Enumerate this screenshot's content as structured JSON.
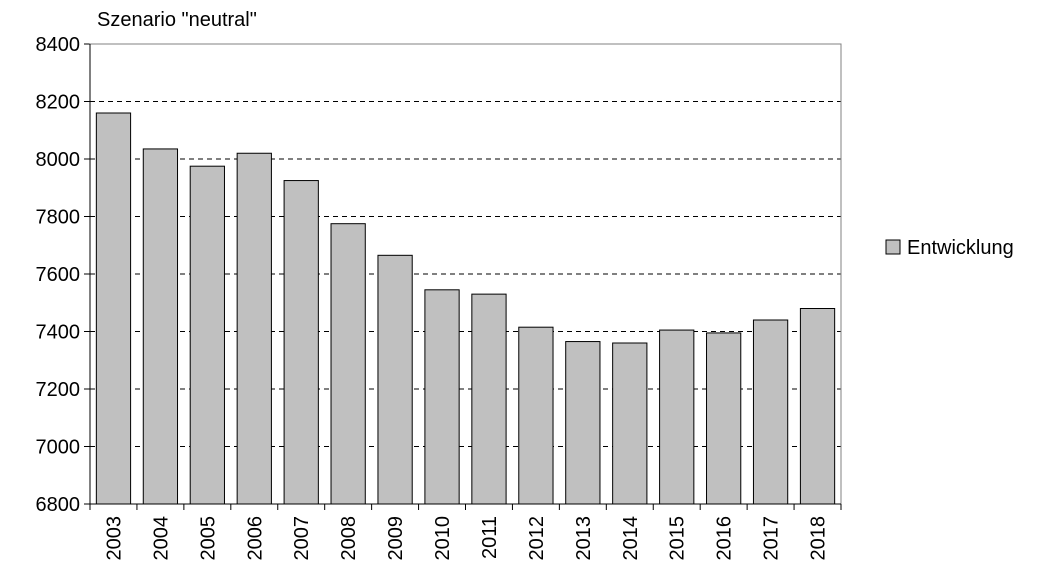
{
  "chart_data": {
    "type": "bar",
    "title": "Szenario \"neutral\"",
    "xlabel": "",
    "ylabel": "",
    "categories": [
      "2003",
      "2004",
      "2005",
      "2006",
      "2007",
      "2008",
      "2009",
      "2010",
      "2011",
      "2012",
      "2013",
      "2014",
      "2015",
      "2016",
      "2017",
      "2018"
    ],
    "series": [
      {
        "name": "Entwicklung",
        "values": [
          8160,
          8035,
          7975,
          8020,
          7925,
          7775,
          7665,
          7545,
          7530,
          7415,
          7365,
          7360,
          7405,
          7395,
          7440,
          7480
        ]
      }
    ],
    "ylim": [
      6800,
      8400
    ],
    "yticks": [
      6800,
      7000,
      7200,
      7400,
      7600,
      7800,
      8000,
      8200,
      8400
    ],
    "grid": "horizontal-dashed",
    "legend_position": "right",
    "colors": {
      "bar_fill": "#c0c0c0",
      "bar_stroke": "#000000",
      "grid": "#000000",
      "axis": "#000000"
    }
  }
}
